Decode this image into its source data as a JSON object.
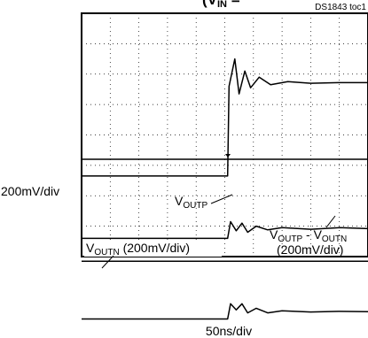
{
  "header": {
    "partial_title": "(V",
    "partial_title_sub": "IN",
    "partial_title_tail": " = ",
    "doc_code": "DS1843 toc1"
  },
  "labels": {
    "left_scale": "200mV/div",
    "time_scale": "50ns/div",
    "voutp_main": "V",
    "voutp_sub": "OUTP",
    "diff_line1_a": "V",
    "diff_line1_a_sub": "OUTP",
    "diff_line1_b": " - V",
    "diff_line1_b_sub": "OUTN",
    "diff_line2": "(200mV/div)",
    "voutn_main": "V",
    "voutn_sub": "OUTN",
    "voutn_tail": " (200mV/div)"
  },
  "colors": {
    "trace": "#000000",
    "grid": "#000000",
    "background": "#ffffff"
  },
  "chart_data": {
    "type": "line",
    "grid": true,
    "grid_divisions": {
      "x": 10,
      "y": 8
    },
    "xlabel": "50ns/div",
    "ylabel": "200mV/div",
    "series": [
      {
        "name": "V_IN",
        "x_div": [
          0,
          5.1,
          5.15,
          5.35,
          5.5,
          5.7,
          5.9,
          6.2,
          6.6,
          7.2,
          8,
          9,
          10
        ],
        "y_div": [
          -1.35,
          -1.35,
          1.6,
          2.5,
          1.35,
          2.1,
          1.55,
          1.9,
          1.65,
          1.75,
          1.7,
          1.72,
          1.72
        ]
      },
      {
        "name": "V_OUTP",
        "x_div": [
          0,
          5.1,
          5.2,
          5.4,
          5.6,
          5.8,
          6.1,
          6.5,
          7,
          8,
          9,
          10
        ],
        "y_div": [
          -3.4,
          -3.4,
          -2.85,
          -3.15,
          -2.9,
          -3.2,
          -3.0,
          -3.12,
          -3.05,
          -3.1,
          -3.05,
          -3.08
        ]
      },
      {
        "name": "V_OUTP - V_OUTN",
        "x_div": [
          0,
          10
        ],
        "y_div": [
          -4.15,
          -4.15
        ]
      },
      {
        "name": "V_OUTN",
        "x_div": [
          0,
          5.1,
          5.2,
          5.4,
          5.6,
          5.8,
          6.1,
          6.5,
          7,
          8,
          9,
          10
        ],
        "y_div": [
          -6.05,
          -6.05,
          -5.55,
          -5.75,
          -5.55,
          -5.85,
          -5.7,
          -5.85,
          -5.78,
          -5.82,
          -5.8,
          -5.81
        ]
      }
    ]
  }
}
